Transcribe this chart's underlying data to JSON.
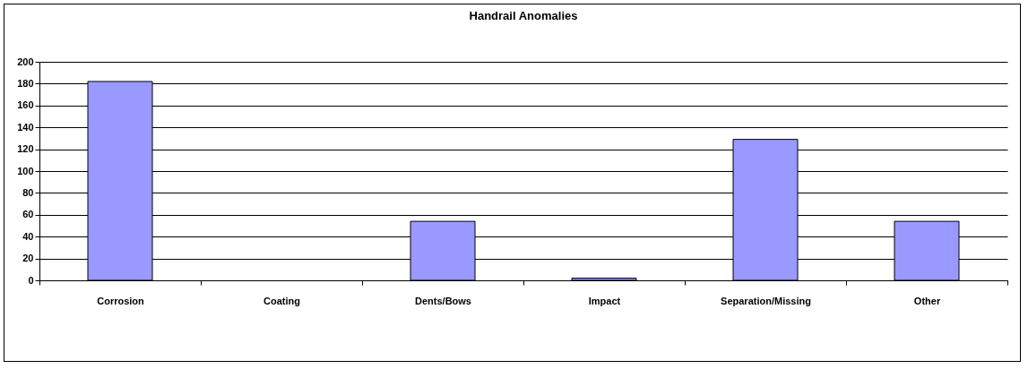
{
  "chart_data": {
    "type": "bar",
    "title": "Handrail Anomalies",
    "categories": [
      "Corrosion",
      "Coating",
      "Dents/Bows",
      "Impact",
      "Separation/Missing",
      "Other"
    ],
    "values": [
      182,
      0,
      54,
      2,
      129,
      54
    ],
    "color": "#9999ff",
    "ylim": [
      0,
      200
    ],
    "yticks": [
      0,
      20,
      40,
      60,
      80,
      100,
      120,
      140,
      160,
      180,
      200
    ],
    "grid": "y"
  }
}
